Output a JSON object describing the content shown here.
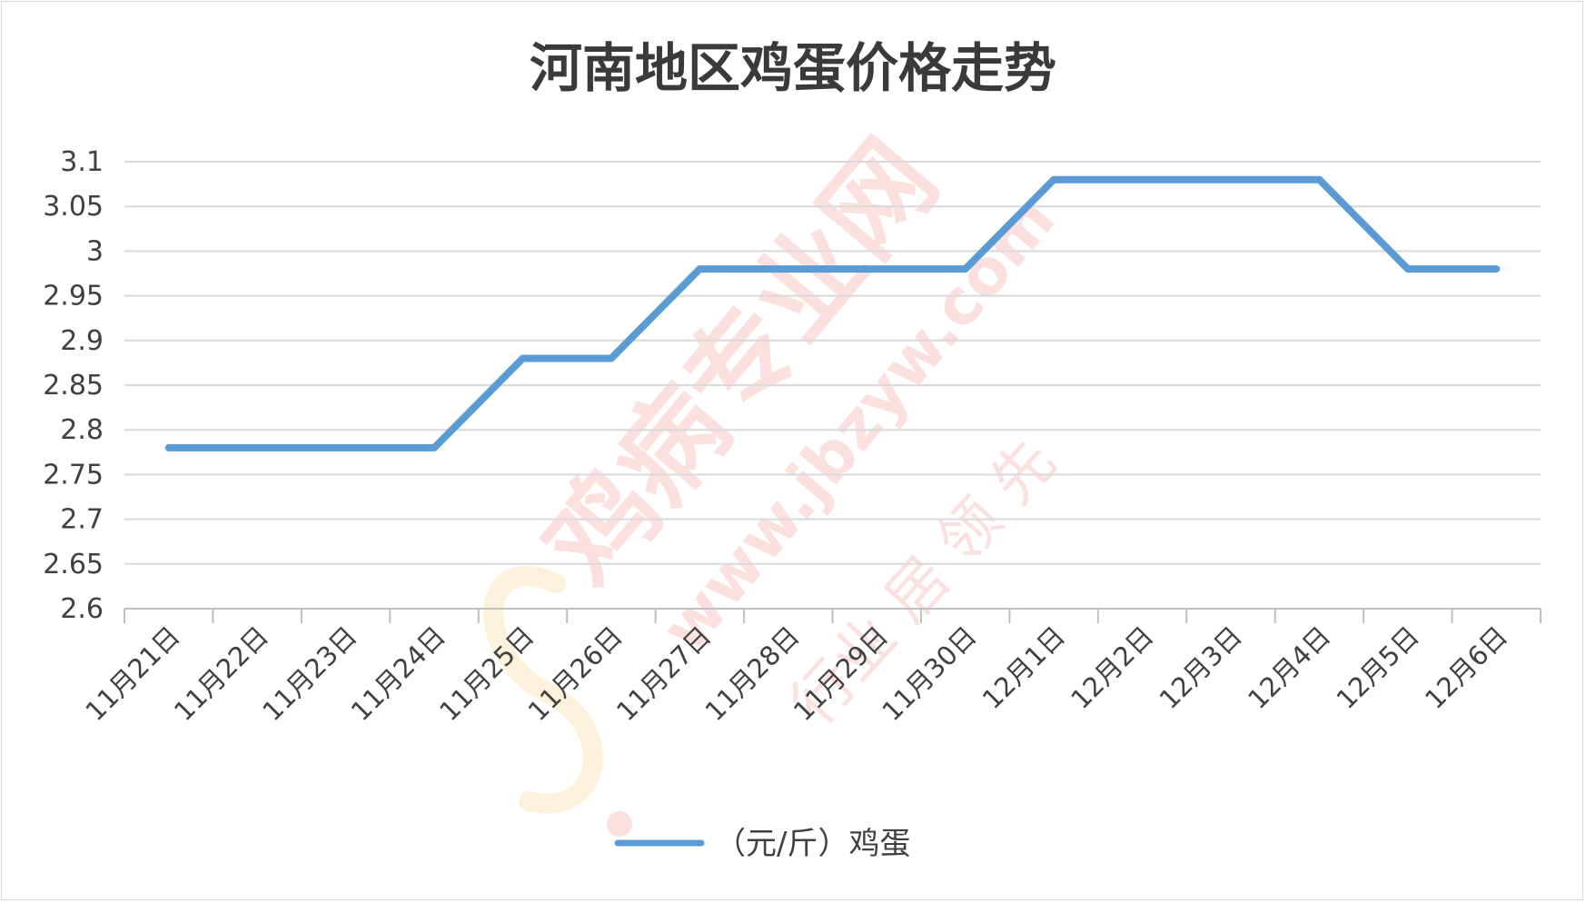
{
  "chart_data": {
    "type": "line",
    "title": "河南地区鸡蛋价格走势",
    "categories": [
      "11月21日",
      "11月22日",
      "11月23日",
      "11月24日",
      "11月25日",
      "11月26日",
      "11月27日",
      "11月28日",
      "11月29日",
      "11月30日",
      "12月1日",
      "12月2日",
      "12月3日",
      "12月4日",
      "12月5日",
      "12月6日"
    ],
    "series": [
      {
        "name": "（元/斤）鸡蛋",
        "values": [
          2.78,
          2.78,
          2.78,
          2.78,
          2.88,
          2.88,
          2.98,
          2.98,
          2.98,
          2.98,
          3.08,
          3.08,
          3.08,
          3.08,
          2.98,
          2.98
        ],
        "color": "#5b9bd5"
      }
    ],
    "ylim": [
      2.6,
      3.1
    ],
    "yticks": [
      "2.6",
      "2.65",
      "2.7",
      "2.75",
      "2.8",
      "2.85",
      "2.9",
      "2.95",
      "3",
      "3.05",
      "3.1"
    ],
    "grid": true,
    "legend_position": "bottom",
    "watermark": {
      "main": "鸡病专业网",
      "url": "www.jbzyw.com",
      "slogan": "行业 居 领 先"
    }
  }
}
